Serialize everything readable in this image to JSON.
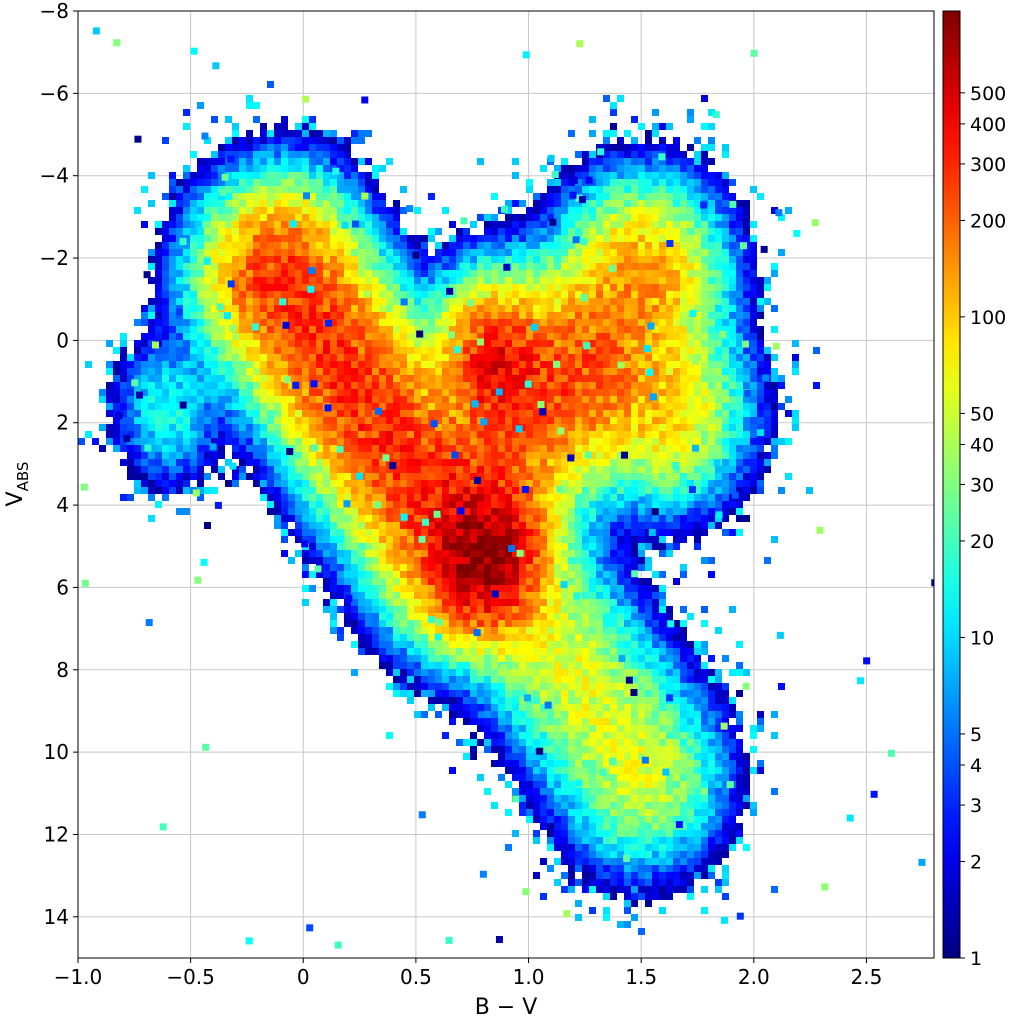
{
  "chart_data": {
    "type": "heatmap",
    "title": "",
    "xlabel": "B − V",
    "ylabel": "V",
    "ylabel_sub": "ABS",
    "xlim": [
      -1.0,
      2.8
    ],
    "ylim": [
      15,
      -8
    ],
    "y_inverted": true,
    "x_ticks": [
      -1.0,
      -0.5,
      0,
      0.5,
      1.0,
      1.5,
      2.0,
      2.5
    ],
    "x_tick_labels": [
      "−1.0",
      "−0.5",
      "0",
      "0.5",
      "1.0",
      "1.5",
      "2.0",
      "2.5"
    ],
    "y_ticks": [
      -8,
      -6,
      -4,
      -2,
      0,
      2,
      4,
      6,
      8,
      10,
      12,
      14
    ],
    "y_tick_labels": [
      "−8",
      "−6",
      "−4",
      "−2",
      "0",
      "2",
      "4",
      "6",
      "8",
      "10",
      "12",
      "14"
    ],
    "grid": true,
    "colorbar": {
      "scale": "log",
      "range": [
        1,
        900
      ],
      "colormap": "jet",
      "ticks": [
        1,
        2,
        3,
        4,
        5,
        10,
        20,
        30,
        40,
        50,
        100,
        200,
        300,
        400,
        500
      ],
      "tick_labels": [
        "1",
        "2",
        "3",
        "4",
        "5",
        "10",
        "20",
        "30",
        "40",
        "50",
        "100",
        "200",
        "300",
        "400",
        "500"
      ]
    },
    "density_description": "Hertzsprung–Russell diagram: 2D histogram of star counts per bin",
    "density_features": [
      {
        "name": "main sequence upper",
        "from": [
          -0.1,
          -1.5
        ],
        "to": [
          0.7,
          5.0
        ],
        "peak_count": 300
      },
      {
        "name": "main sequence lower",
        "from": [
          0.75,
          4.5
        ],
        "to": [
          1.5,
          10.5
        ],
        "peak_count": 60
      },
      {
        "name": "turnoff dense knot",
        "center": [
          0.82,
          5.3
        ],
        "peak_count": 600
      },
      {
        "name": "red clump",
        "center": [
          0.85,
          0.6
        ],
        "peak_count": 300
      },
      {
        "name": "red giant branch",
        "from": [
          0.9,
          3.0
        ],
        "to": [
          1.5,
          -1.5
        ],
        "peak_count": 150
      },
      {
        "name": "horizontal branch",
        "from": [
          0.9,
          0.5
        ],
        "to": [
          1.6,
          1.6
        ],
        "peak_count": 100
      },
      {
        "name": "blue stragglers",
        "center": [
          -0.6,
          1.7
        ],
        "peak_count": 15
      }
    ]
  }
}
